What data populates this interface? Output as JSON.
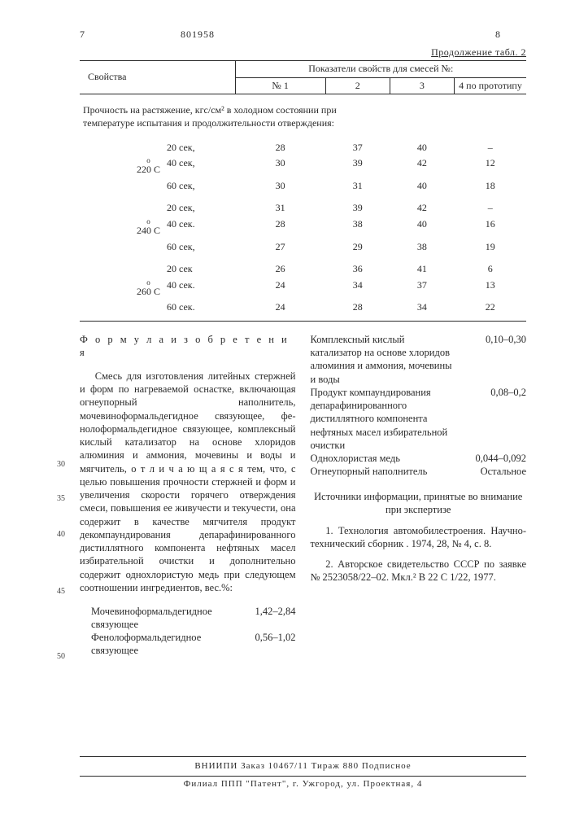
{
  "header": {
    "col7": "7",
    "patent_no": "801958",
    "col8": "8"
  },
  "table": {
    "continuation": "Продолжение табл. 2",
    "prop_header": "Свойства",
    "metrics_header": "Показатели свойств для смесей №:",
    "cols": [
      "№ 1",
      "2",
      "3",
      "4 по прото­типу"
    ],
    "row_caption": "Прочность на растяжение, кгс/см² в холодном состоянии при темпе­ратуре испытания и продолжитель­ности отверждения:",
    "blocks": [
      {
        "temp": "220°С",
        "rows": [
          {
            "time": "20 сек,",
            "v": [
              "28",
              "37",
              "40",
              "–"
            ]
          },
          {
            "time": "40 сек,",
            "v": [
              "30",
              "39",
              "42",
              "12"
            ]
          },
          {
            "time": "60 сек,",
            "v": [
              "30",
              "31",
              "40",
              "18"
            ]
          }
        ]
      },
      {
        "temp": "240°С",
        "rows": [
          {
            "time": "20 сек,",
            "v": [
              "31",
              "39",
              "42",
              "–"
            ]
          },
          {
            "time": "40 сек.",
            "v": [
              "28",
              "38",
              "40",
              "16"
            ]
          },
          {
            "time": "60 сек,",
            "v": [
              "27",
              "29",
              "38",
              "19"
            ]
          }
        ]
      },
      {
        "temp": "260°С",
        "rows": [
          {
            "time": "20 сек",
            "v": [
              "26",
              "36",
              "41",
              "6"
            ]
          },
          {
            "time": "40 сек.",
            "v": [
              "24",
              "34",
              "37",
              "13"
            ]
          },
          {
            "time": "60 сек.",
            "v": [
              "24",
              "28",
              "34",
              "22"
            ]
          }
        ]
      }
    ],
    "temps": [
      "220",
      "240",
      "260"
    ],
    "times": [
      "20 сек,",
      "40 сек,",
      "60 сек,",
      "20 сек,",
      "40 сек.",
      "60 сек,",
      "20 сек",
      "40 сек.",
      "60 сек."
    ]
  },
  "formula": {
    "title": "Ф о р м у л а  и з о б р е т е н и я",
    "left": "Смесь для изготовления литейных стержней и форм по нагреваемой оснаст­ке, включающая огнеупорный наполнитель, мочевиноформальдегидное связующее, фе­нолоформальдегидное связующее, комплекс­ный кислый катализатор на основе хлори­дов алюминия и аммония, мочевины и воды и мягчитель, о т л и ч а ю щ а я ­с я  тем, что, с целью повышения проч­ности стержней и форм и  увеличения скорости горячего отверждения смеси, повышения ее живучести и  текучести, она содержит в качестве мягчителя про­дукт декомпаундирования депарафиниро­ван­ного дистиллятного компонента нефтяных масел избирательной очистки и дополни­тельно содержит однохлористую медь при следующем соотношении ингредиентов, вес.%:",
    "ingr_left": [
      {
        "lbl": "Мочевиноформаль­дегидное связующее",
        "val": "1,42–2,84"
      },
      {
        "lbl": "Фенолоформаль­дегидное связующее",
        "val": "0,56–1,02"
      }
    ],
    "ingr_right": [
      {
        "lbl": "Комплексный кислый катализатор на основе хлоридов алюминия и аммония, мочевины и воды",
        "val": "0,10–0,30"
      },
      {
        "lbl": "Продукт компаундиро­вания депарафиниро­ван­ного дистиллятного ком­понента нефтяных масел избирательной очистки",
        "val": "0,08–0,2"
      },
      {
        "lbl": "Однохлористая медь",
        "val": "0,044–0,092"
      },
      {
        "lbl": "Огнеупорный напол­нитель",
        "val": "Остальное"
      }
    ],
    "sources_title": "Источники информации, принятые во внимание при экспертизе",
    "sources": [
      "1. Технология автомобилестроения. Научно-технический сборник . 1974, 28, № 4, с. 8.",
      "2. Авторское свидетельство СССР по заявке № 2523058/22–02. Мкл.² В 22 С 1/22, 1977."
    ]
  },
  "line_nums": [
    "30",
    "35",
    "40",
    "45",
    "50"
  ],
  "footer": {
    "line1": "ВНИИПИ        Заказ 10467/11        Тираж  880        Подписное",
    "line2": "Филиал ППП \"Патент\", г. Ужгород, ул. Проектная, 4"
  },
  "colors": {
    "text": "#2a2a2a",
    "bg": "#ffffff",
    "rule": "#2a2a2a"
  }
}
